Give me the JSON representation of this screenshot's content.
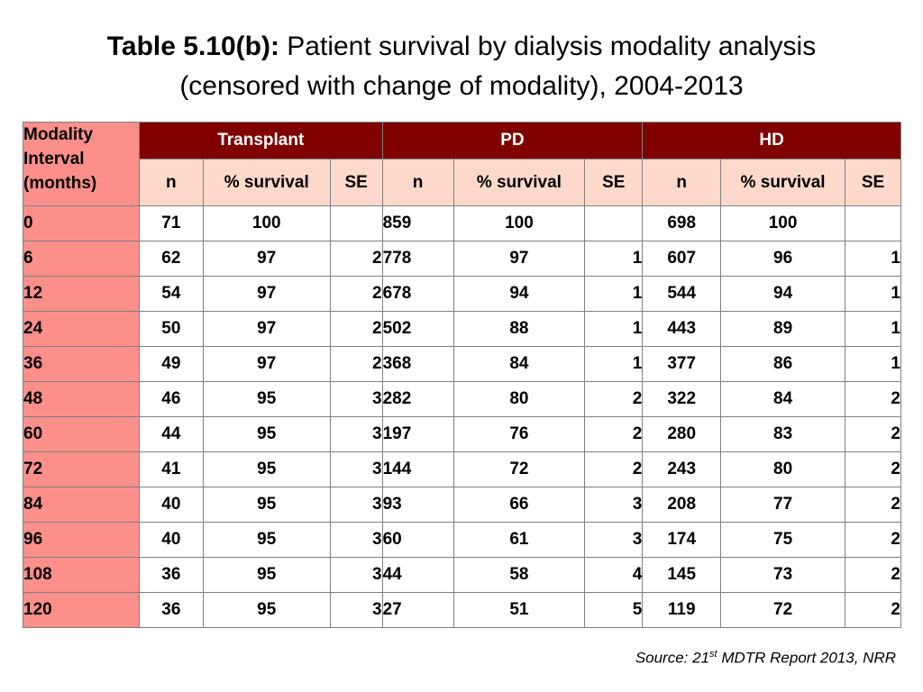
{
  "title": {
    "label": "Table 5.10(b):",
    "line1": "Patient survival by dialysis modality analysis",
    "line2": "(censored with change of modality), 2004-2013"
  },
  "table": {
    "row_header": [
      "Modality",
      "Interval",
      "(months)"
    ],
    "groups": [
      "Transplant",
      "PD",
      "HD"
    ],
    "subcolumns": [
      "n",
      "% survival",
      "SE"
    ],
    "rows": [
      {
        "interval": "0",
        "t": [
          "71",
          "100",
          ""
        ],
        "pd": [
          "859",
          "100",
          ""
        ],
        "hd": [
          "698",
          "100",
          ""
        ]
      },
      {
        "interval": "6",
        "t": [
          "62",
          "97",
          "2"
        ],
        "pd": [
          "778",
          "97",
          "1"
        ],
        "hd": [
          "607",
          "96",
          "1"
        ]
      },
      {
        "interval": "12",
        "t": [
          "54",
          "97",
          "2"
        ],
        "pd": [
          "678",
          "94",
          "1"
        ],
        "hd": [
          "544",
          "94",
          "1"
        ]
      },
      {
        "interval": "24",
        "t": [
          "50",
          "97",
          "2"
        ],
        "pd": [
          "502",
          "88",
          "1"
        ],
        "hd": [
          "443",
          "89",
          "1"
        ]
      },
      {
        "interval": "36",
        "t": [
          "49",
          "97",
          "2"
        ],
        "pd": [
          "368",
          "84",
          "1"
        ],
        "hd": [
          "377",
          "86",
          "1"
        ]
      },
      {
        "interval": "48",
        "t": [
          "46",
          "95",
          "3"
        ],
        "pd": [
          "282",
          "80",
          "2"
        ],
        "hd": [
          "322",
          "84",
          "2"
        ]
      },
      {
        "interval": "60",
        "t": [
          "44",
          "95",
          "3"
        ],
        "pd": [
          "197",
          "76",
          "2"
        ],
        "hd": [
          "280",
          "83",
          "2"
        ]
      },
      {
        "interval": "72",
        "t": [
          "41",
          "95",
          "3"
        ],
        "pd": [
          "144",
          "72",
          "2"
        ],
        "hd": [
          "243",
          "80",
          "2"
        ]
      },
      {
        "interval": "84",
        "t": [
          "40",
          "95",
          "3"
        ],
        "pd": [
          "93",
          "66",
          "3"
        ],
        "hd": [
          "208",
          "77",
          "2"
        ]
      },
      {
        "interval": "96",
        "t": [
          "40",
          "95",
          "3"
        ],
        "pd": [
          "60",
          "61",
          "3"
        ],
        "hd": [
          "174",
          "75",
          "2"
        ]
      },
      {
        "interval": "108",
        "t": [
          "36",
          "95",
          "3"
        ],
        "pd": [
          "44",
          "58",
          "4"
        ],
        "hd": [
          "145",
          "73",
          "2"
        ]
      },
      {
        "interval": "120",
        "t": [
          "36",
          "95",
          "3"
        ],
        "pd": [
          "27",
          "51",
          "5"
        ],
        "hd": [
          "119",
          "72",
          "2"
        ]
      }
    ]
  },
  "source": {
    "prefix": "Source: 21",
    "sup": "st",
    "suffix": " MDTR Report 2013, NRR"
  }
}
